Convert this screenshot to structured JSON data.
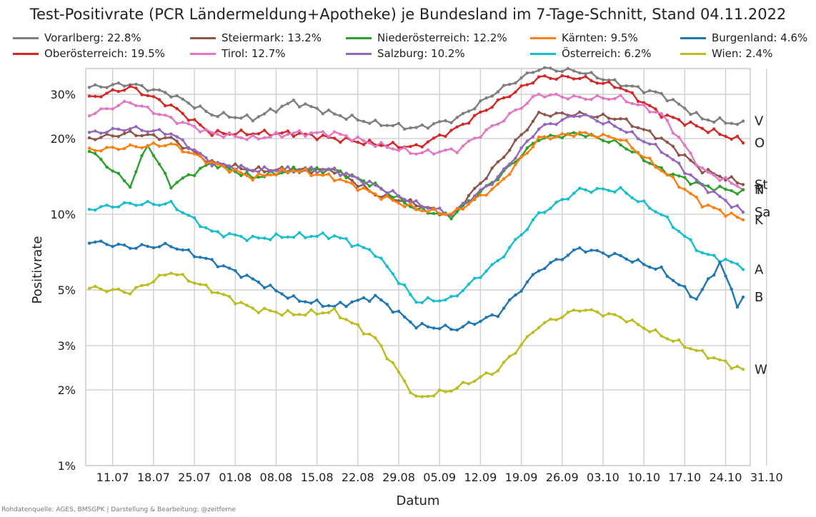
{
  "chart_data": {
    "type": "line",
    "title": "Test-Positivrate (PCR Ländermeldung+Apotheke) je Bundesland im 7-Tage-Schnitt, Stand 04.11.2022",
    "xlabel": "Datum",
    "ylabel": "Positivrate",
    "y_scale": "log",
    "ylim": [
      1,
      38
    ],
    "x_ticks": [
      "11.07",
      "18.07",
      "25.07",
      "01.08",
      "08.08",
      "15.08",
      "22.08",
      "29.08",
      "05.09",
      "12.09",
      "19.09",
      "26.09",
      "03.10",
      "10.10",
      "17.10",
      "24.10",
      "31.10"
    ],
    "y_ticks": [
      "1%",
      "2%",
      "3%",
      "5%",
      "10%",
      "20%",
      "30%"
    ],
    "y_tick_values": [
      1,
      2,
      3,
      5,
      10,
      20,
      30
    ],
    "grid": true,
    "legend_position": "top",
    "series": [
      {
        "name": "Vorarlberg: 22.8%",
        "label": "V",
        "color": "#7f7f7f",
        "knots": [
          [
            0,
            32
          ],
          [
            7,
            33
          ],
          [
            14,
            30
          ],
          [
            21,
            25
          ],
          [
            28,
            24
          ],
          [
            35,
            28
          ],
          [
            42,
            25
          ],
          [
            49,
            23
          ],
          [
            56,
            22
          ],
          [
            63,
            24
          ],
          [
            70,
            31
          ],
          [
            77,
            38
          ],
          [
            84,
            37
          ],
          [
            91,
            33
          ],
          [
            98,
            30
          ],
          [
            105,
            24
          ],
          [
            112,
            22.8
          ]
        ]
      },
      {
        "name": "Oberösterreich: 19.5%",
        "label": "O",
        "color": "#d62728",
        "knots": [
          [
            0,
            29
          ],
          [
            7,
            32
          ],
          [
            14,
            27
          ],
          [
            21,
            21
          ],
          [
            28,
            21
          ],
          [
            35,
            21
          ],
          [
            42,
            20
          ],
          [
            49,
            19
          ],
          [
            56,
            18.5
          ],
          [
            63,
            22
          ],
          [
            70,
            28
          ],
          [
            77,
            35
          ],
          [
            84,
            35
          ],
          [
            91,
            32
          ],
          [
            98,
            25
          ],
          [
            105,
            22
          ],
          [
            112,
            19.5
          ]
        ]
      },
      {
        "name": "Steiermark: 13.2%",
        "label": "St",
        "color": "#8c564b",
        "knots": [
          [
            0,
            20
          ],
          [
            7,
            21
          ],
          [
            14,
            20
          ],
          [
            21,
            16
          ],
          [
            28,
            15
          ],
          [
            35,
            15
          ],
          [
            42,
            15
          ],
          [
            49,
            12
          ],
          [
            56,
            11
          ],
          [
            62,
            9.8
          ],
          [
            70,
            16
          ],
          [
            77,
            25
          ],
          [
            84,
            25
          ],
          [
            91,
            24
          ],
          [
            98,
            20
          ],
          [
            105,
            15
          ],
          [
            112,
            13.2
          ]
        ]
      },
      {
        "name": "Tirol: 12.7%",
        "label": "T",
        "color": "#e377c2",
        "knots": [
          [
            0,
            25
          ],
          [
            7,
            28
          ],
          [
            14,
            24
          ],
          [
            21,
            21
          ],
          [
            28,
            20
          ],
          [
            35,
            21
          ],
          [
            42,
            21
          ],
          [
            49,
            19
          ],
          [
            56,
            17.5
          ],
          [
            63,
            18
          ],
          [
            70,
            23
          ],
          [
            77,
            30
          ],
          [
            84,
            29
          ],
          [
            91,
            29
          ],
          [
            98,
            25
          ],
          [
            105,
            15
          ],
          [
            112,
            12.7
          ]
        ]
      },
      {
        "name": "Niederösterreich: 12.2%",
        "label": "N",
        "color": "#2ca02c",
        "knots": [
          [
            0,
            18
          ],
          [
            7,
            13
          ],
          [
            10,
            19
          ],
          [
            14,
            13
          ],
          [
            21,
            16
          ],
          [
            28,
            14
          ],
          [
            35,
            15
          ],
          [
            42,
            15
          ],
          [
            49,
            13
          ],
          [
            56,
            10.5
          ],
          [
            62,
            9.8
          ],
          [
            70,
            14
          ],
          [
            77,
            20
          ],
          [
            84,
            21
          ],
          [
            91,
            19
          ],
          [
            98,
            15
          ],
          [
            105,
            13
          ],
          [
            112,
            12.2
          ]
        ]
      },
      {
        "name": "Salzburg: 10.2%",
        "label": "Sa",
        "color": "#9467bd",
        "knots": [
          [
            0,
            21
          ],
          [
            7,
            22
          ],
          [
            14,
            21
          ],
          [
            21,
            16
          ],
          [
            28,
            15
          ],
          [
            35,
            15
          ],
          [
            42,
            15
          ],
          [
            49,
            13
          ],
          [
            56,
            11
          ],
          [
            62,
            10
          ],
          [
            70,
            14
          ],
          [
            77,
            22
          ],
          [
            84,
            25
          ],
          [
            91,
            22
          ],
          [
            98,
            18
          ],
          [
            105,
            13
          ],
          [
            112,
            10.2
          ]
        ]
      },
      {
        "name": "Kärnten: 9.5%",
        "label": "K",
        "color": "#ff7f0e",
        "knots": [
          [
            0,
            18
          ],
          [
            7,
            18.5
          ],
          [
            14,
            19
          ],
          [
            21,
            16
          ],
          [
            28,
            14
          ],
          [
            35,
            15
          ],
          [
            42,
            14
          ],
          [
            49,
            12
          ],
          [
            56,
            10.5
          ],
          [
            62,
            10
          ],
          [
            70,
            13
          ],
          [
            77,
            20
          ],
          [
            84,
            21
          ],
          [
            91,
            20
          ],
          [
            98,
            15
          ],
          [
            105,
            11
          ],
          [
            112,
            9.5
          ]
        ]
      },
      {
        "name": "Österreich: 6.2%",
        "label": "A",
        "color": "#17becf",
        "knots": [
          [
            0,
            10.5
          ],
          [
            7,
            11
          ],
          [
            14,
            11
          ],
          [
            21,
            8.5
          ],
          [
            28,
            8
          ],
          [
            35,
            8.2
          ],
          [
            42,
            8.2
          ],
          [
            49,
            7
          ],
          [
            56,
            4.5
          ],
          [
            62,
            4.6
          ],
          [
            70,
            6.5
          ],
          [
            77,
            10
          ],
          [
            84,
            12.5
          ],
          [
            91,
            12.5
          ],
          [
            98,
            10
          ],
          [
            105,
            7
          ],
          [
            112,
            6.2
          ]
        ]
      },
      {
        "name": "Burgenland: 4.6%",
        "label": "B",
        "color": "#1f77b4",
        "knots": [
          [
            0,
            7.8
          ],
          [
            7,
            7.4
          ],
          [
            14,
            7.5
          ],
          [
            21,
            6.5
          ],
          [
            28,
            5.5
          ],
          [
            35,
            4.6
          ],
          [
            42,
            4.3
          ],
          [
            49,
            4.7
          ],
          [
            56,
            3.6
          ],
          [
            63,
            3.5
          ],
          [
            70,
            4.0
          ],
          [
            77,
            6.0
          ],
          [
            84,
            7.3
          ],
          [
            91,
            6.8
          ],
          [
            98,
            6.0
          ],
          [
            104,
            4.6
          ],
          [
            108,
            6.4
          ],
          [
            111,
            4.4
          ],
          [
            112,
            4.6
          ]
        ]
      },
      {
        "name": "Wien: 2.4%",
        "label": "W",
        "color": "#bcbd22",
        "knots": [
          [
            0,
            5.1
          ],
          [
            7,
            4.9
          ],
          [
            14,
            5.9
          ],
          [
            21,
            5.0
          ],
          [
            28,
            4.2
          ],
          [
            35,
            4.0
          ],
          [
            42,
            4.1
          ],
          [
            49,
            3.2
          ],
          [
            56,
            1.85
          ],
          [
            62,
            2.0
          ],
          [
            70,
            2.4
          ],
          [
            77,
            3.6
          ],
          [
            84,
            4.2
          ],
          [
            91,
            3.9
          ],
          [
            98,
            3.3
          ],
          [
            105,
            2.8
          ],
          [
            112,
            2.4
          ]
        ]
      }
    ]
  },
  "source": "Rohdatenquelle: AGES, BMSGPK | Darstellung & Bearbeitung: @zeitferne"
}
